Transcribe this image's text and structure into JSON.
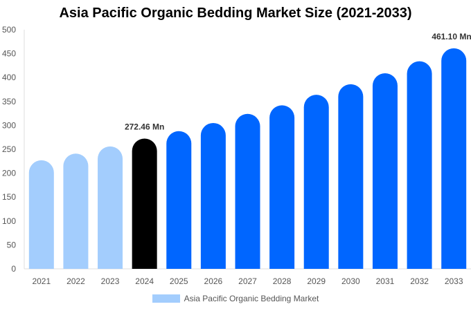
{
  "chart_data": {
    "type": "bar",
    "title": "Asia Pacific Organic Bedding Market Size (2021-2033)",
    "categories": [
      "2021",
      "2022",
      "2023",
      "2024",
      "2025",
      "2026",
      "2027",
      "2028",
      "2029",
      "2030",
      "2031",
      "2032",
      "2033"
    ],
    "series": [
      {
        "name": "Asia Pacific Organic Bedding Market",
        "values": [
          227,
          241,
          256,
          272.46,
          288,
          305,
          324,
          342,
          364,
          386,
          409,
          434,
          461.1
        ]
      }
    ],
    "data_labels": [
      {
        "category": "2024",
        "text": "272.46 Mn"
      },
      {
        "category": "2033",
        "text": "461.10 Mn"
      }
    ],
    "ylim": [
      0,
      500
    ],
    "yticks": [
      0,
      50,
      100,
      150,
      200,
      250,
      300,
      350,
      400,
      450,
      500
    ],
    "grid": false,
    "legend_position": "bottom",
    "colors": {
      "historic": "#a3cdfd",
      "base_year": "#000000",
      "forecast": "#0066ff"
    },
    "bar_color_index": [
      "historic",
      "historic",
      "historic",
      "base_year",
      "forecast",
      "forecast",
      "forecast",
      "forecast",
      "forecast",
      "forecast",
      "forecast",
      "forecast",
      "forecast"
    ]
  }
}
